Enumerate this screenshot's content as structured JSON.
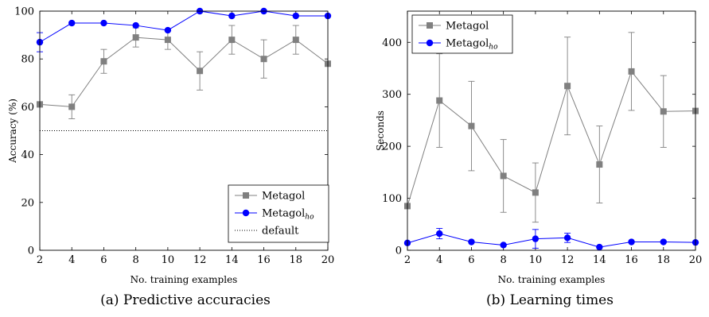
{
  "colors": {
    "metagol": "#808080",
    "metagol_ho": "#0000ff",
    "default_line": "#000000"
  },
  "chart_data": [
    {
      "id": "a",
      "type": "line",
      "caption": "(a) Predictive accuracies",
      "xlabel": "No. training examples",
      "ylabel": "Accuracy (%)",
      "x": [
        2,
        4,
        6,
        8,
        10,
        12,
        14,
        16,
        18,
        20
      ],
      "xlim": [
        2,
        20
      ],
      "ylim": [
        0,
        100
      ],
      "xticks": [
        2,
        4,
        6,
        8,
        10,
        12,
        14,
        16,
        18,
        20
      ],
      "yticks": [
        0,
        20,
        40,
        60,
        80,
        100
      ],
      "legend_position": "bottom-right",
      "series": [
        {
          "name": "Metagol",
          "legend_main": "Metagol",
          "legend_sub": "",
          "marker": "square",
          "color": "#808080",
          "values": [
            61,
            60,
            79,
            89,
            88,
            75,
            88,
            80,
            88,
            78
          ],
          "errors": [
            0,
            5,
            5,
            4,
            4,
            8,
            6,
            8,
            6,
            0
          ]
        },
        {
          "name": "Metagol_ho",
          "legend_main": "Metagol",
          "legend_sub": "ho",
          "marker": "circle",
          "color": "#0000ff",
          "values": [
            87,
            95,
            95,
            94,
            92,
            100,
            98,
            100,
            98,
            98
          ],
          "errors": [
            4,
            0,
            0,
            0,
            0,
            0,
            0,
            0,
            0,
            0
          ]
        },
        {
          "name": "default",
          "legend_main": "default",
          "legend_sub": "",
          "marker": "none",
          "color": "#000000",
          "dotted": true,
          "values": [
            50,
            50,
            50,
            50,
            50,
            50,
            50,
            50,
            50,
            50
          ],
          "errors": []
        }
      ]
    },
    {
      "id": "b",
      "type": "line",
      "caption": "(b) Learning times",
      "xlabel": "No. training examples",
      "ylabel": "Seconds",
      "x": [
        2,
        4,
        6,
        8,
        10,
        12,
        14,
        16,
        18,
        20
      ],
      "xlim": [
        2,
        20
      ],
      "ylim": [
        0,
        460
      ],
      "xticks": [
        2,
        4,
        6,
        8,
        10,
        12,
        14,
        16,
        18,
        20
      ],
      "yticks": [
        0,
        100,
        200,
        300,
        400
      ],
      "legend_position": "top-left",
      "series": [
        {
          "name": "Metagol",
          "legend_main": "Metagol",
          "legend_sub": "",
          "marker": "square",
          "color": "#808080",
          "values": [
            85,
            288,
            239,
            143,
            111,
            316,
            165,
            344,
            267,
            268
          ],
          "errors": [
            0,
            90,
            86,
            70,
            57,
            94,
            74,
            75,
            69,
            0
          ]
        },
        {
          "name": "Metagol_ho",
          "legend_main": "Metagol",
          "legend_sub": "ho",
          "marker": "circle",
          "color": "#0000ff",
          "values": [
            14,
            32,
            16,
            10,
            22,
            24,
            6,
            16,
            16,
            15
          ],
          "errors": [
            0,
            10,
            0,
            0,
            18,
            9,
            0,
            0,
            0,
            0
          ]
        }
      ]
    }
  ]
}
